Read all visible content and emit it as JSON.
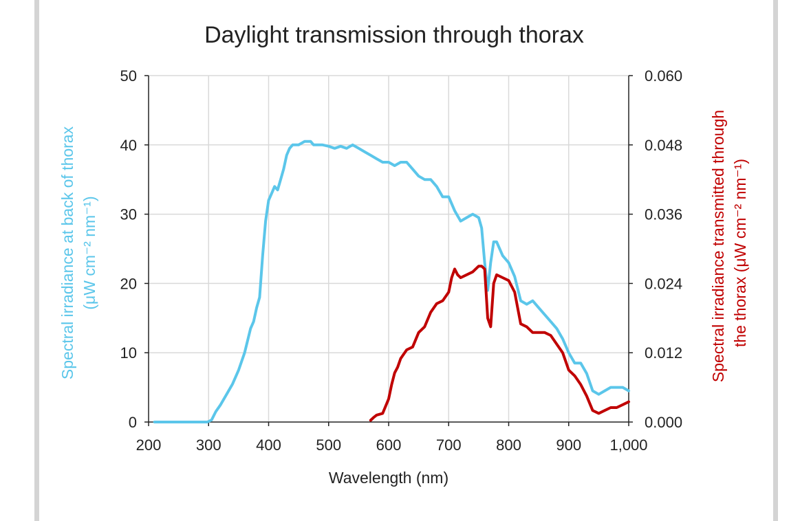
{
  "chart_data": {
    "type": "line",
    "title": "Daylight transmission through thorax",
    "xlabel": "Wavelength (nm)",
    "ylabel_left": [
      "Spectral irradiance at back of thorax",
      "(μW cm⁻² nm⁻¹)"
    ],
    "ylabel_right": [
      "Spectral irradiance transmitted through",
      "the thorax (μW cm⁻² nm⁻¹)"
    ],
    "xlim": [
      200,
      1000
    ],
    "ylim_left": [
      0,
      50
    ],
    "ylim_right": [
      0,
      0.06
    ],
    "x_ticks": [
      "200",
      "300",
      "400",
      "500",
      "600",
      "700",
      "800",
      "900",
      "1,000"
    ],
    "y_ticks_left": [
      "0",
      "10",
      "20",
      "30",
      "40",
      "50"
    ],
    "y_ticks_right": [
      "0.000",
      "0.012",
      "0.024",
      "0.036",
      "0.048",
      "0.060"
    ],
    "grid": true,
    "colors": {
      "left_series": "#5bc6ea",
      "right_series": "#c00000",
      "left_label": "#5bc6ea",
      "right_label": "#c00000"
    },
    "series": [
      {
        "axis": "left",
        "x": [
          210,
          240,
          270,
          298,
          305,
          312,
          320,
          330,
          340,
          350,
          360,
          370,
          375,
          380,
          385,
          390,
          395,
          400,
          405,
          410,
          415,
          420,
          425,
          430,
          435,
          440,
          445,
          450,
          460,
          470,
          475,
          480,
          490,
          500,
          510,
          520,
          530,
          540,
          550,
          560,
          570,
          580,
          590,
          600,
          610,
          620,
          630,
          640,
          650,
          660,
          670,
          680,
          690,
          700,
          710,
          720,
          730,
          740,
          750,
          755,
          760,
          765,
          770,
          775,
          780,
          790,
          800,
          810,
          820,
          830,
          840,
          850,
          860,
          870,
          880,
          890,
          900,
          910,
          920,
          930,
          940,
          950,
          960,
          970,
          980,
          990,
          1000
        ],
        "y": [
          0,
          0,
          0,
          0,
          0.3,
          1.5,
          2.5,
          4.0,
          5.5,
          7.5,
          10.0,
          13.5,
          14.5,
          16.5,
          18.0,
          24.0,
          29.0,
          32.0,
          33.0,
          34.0,
          33.5,
          35.0,
          36.5,
          38.5,
          39.5,
          40.0,
          40.0,
          40.0,
          40.5,
          40.5,
          40.0,
          40.0,
          40.0,
          39.8,
          39.5,
          39.8,
          39.5,
          40.0,
          39.5,
          39.0,
          38.5,
          38.0,
          37.5,
          37.5,
          37.0,
          37.5,
          37.5,
          36.5,
          35.5,
          35.0,
          35.0,
          34.0,
          32.5,
          32.5,
          30.5,
          29.0,
          29.5,
          30.0,
          29.5,
          28.0,
          23.0,
          19.0,
          23.0,
          26.0,
          26.0,
          24.0,
          23.0,
          21.0,
          17.5,
          17.0,
          17.5,
          16.5,
          15.5,
          14.5,
          13.5,
          12.0,
          10.0,
          8.5,
          8.5,
          7.0,
          4.5,
          4.0,
          4.5,
          5.0,
          5.0,
          5.0,
          4.5
        ]
      },
      {
        "axis": "right",
        "x": [
          570,
          575,
          580,
          590,
          600,
          605,
          610,
          615,
          620,
          630,
          640,
          650,
          660,
          670,
          680,
          690,
          700,
          705,
          710,
          715,
          720,
          730,
          740,
          750,
          755,
          760,
          765,
          770,
          775,
          780,
          790,
          800,
          810,
          820,
          830,
          840,
          850,
          860,
          870,
          880,
          890,
          900,
          910,
          920,
          930,
          940,
          950,
          960,
          970,
          980,
          990,
          1000
        ],
        "y": [
          0.0003,
          0.0008,
          0.0012,
          0.0015,
          0.004,
          0.0065,
          0.0085,
          0.0095,
          0.011,
          0.0125,
          0.013,
          0.0155,
          0.0165,
          0.019,
          0.0205,
          0.021,
          0.0225,
          0.025,
          0.0265,
          0.0255,
          0.025,
          0.0255,
          0.026,
          0.027,
          0.027,
          0.0265,
          0.018,
          0.0165,
          0.024,
          0.0255,
          0.025,
          0.0245,
          0.0225,
          0.017,
          0.0165,
          0.0155,
          0.0155,
          0.0155,
          0.015,
          0.0135,
          0.012,
          0.009,
          0.008,
          0.0065,
          0.0045,
          0.002,
          0.0015,
          0.002,
          0.0025,
          0.0025,
          0.003,
          0.0035
        ]
      }
    ]
  }
}
